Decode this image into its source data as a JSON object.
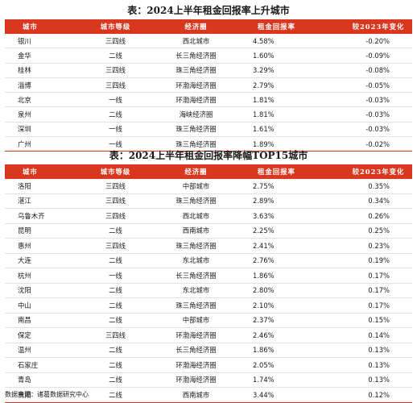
{
  "table1": {
    "title": "表：2024上半年租金回报率上升城市",
    "headers": [
      "城市",
      "城市等级",
      "经济圈",
      "租金回报率",
      "较2023年变化"
    ],
    "rows": [
      [
        "银川",
        "三四线",
        "西北城市",
        "4.58%",
        "-0.20%"
      ],
      [
        "金华",
        "二线",
        "长三角经济圈",
        "1.60%",
        "-0.09%"
      ],
      [
        "桂林",
        "三四线",
        "珠三角经济圈",
        "3.29%",
        "-0.08%"
      ],
      [
        "淄博",
        "三四线",
        "环渤海经济圈",
        "2.79%",
        "-0.05%"
      ],
      [
        "北京",
        "一线",
        "环渤海经济圈",
        "1.81%",
        "-0.03%"
      ],
      [
        "泉州",
        "二线",
        "海峡经济圈",
        "1.81%",
        "-0.03%"
      ],
      [
        "深圳",
        "一线",
        "珠三角经济圈",
        "1.61%",
        "-0.03%"
      ],
      [
        "广州",
        "一线",
        "珠三角经济圈",
        "1.89%",
        "-0.02%"
      ]
    ]
  },
  "table2": {
    "title": "表：2024上半年租金回报率降幅TOP15城市",
    "headers": [
      "城市",
      "城市等级",
      "经济圈",
      "租金回报率",
      "较2023年变化"
    ],
    "rows": [
      [
        "洛阳",
        "三四线",
        "中部城市",
        "2.75%",
        "0.35%"
      ],
      [
        "湛江",
        "三四线",
        "珠三角经济圈",
        "2.89%",
        "0.34%"
      ],
      [
        "乌鲁木齐",
        "三四线",
        "西北城市",
        "3.63%",
        "0.26%"
      ],
      [
        "昆明",
        "二线",
        "西南城市",
        "2.25%",
        "0.25%"
      ],
      [
        "惠州",
        "三四线",
        "珠三角经济圈",
        "2.41%",
        "0.23%"
      ],
      [
        "大连",
        "二线",
        "东北城市",
        "2.76%",
        "0.19%"
      ],
      [
        "杭州",
        "一线",
        "长三角经济圈",
        "1.86%",
        "0.17%"
      ],
      [
        "沈阳",
        "二线",
        "东北城市",
        "2.80%",
        "0.17%"
      ],
      [
        "中山",
        "二线",
        "珠三角经济圈",
        "2.10%",
        "0.17%"
      ],
      [
        "南昌",
        "二线",
        "中部城市",
        "2.37%",
        "0.15%"
      ],
      [
        "保定",
        "三四线",
        "环渤海经济圈",
        "2.46%",
        "0.14%"
      ],
      [
        "温州",
        "二线",
        "长三角经济圈",
        "1.86%",
        "0.13%"
      ],
      [
        "石家庄",
        "二线",
        "环渤海经济圈",
        "2.05%",
        "0.13%"
      ],
      [
        "青岛",
        "二线",
        "环渤海经济圈",
        "1.74%",
        "0.13%"
      ],
      [
        "贵阳",
        "二线",
        "西南城市",
        "3.44%",
        "0.12%"
      ]
    ]
  },
  "source": "数据来源：诸葛数据研究中心",
  "colors": {
    "header_bg": "#d9381e",
    "header_text": "#ffffff",
    "rule": "#e3e3e3"
  }
}
